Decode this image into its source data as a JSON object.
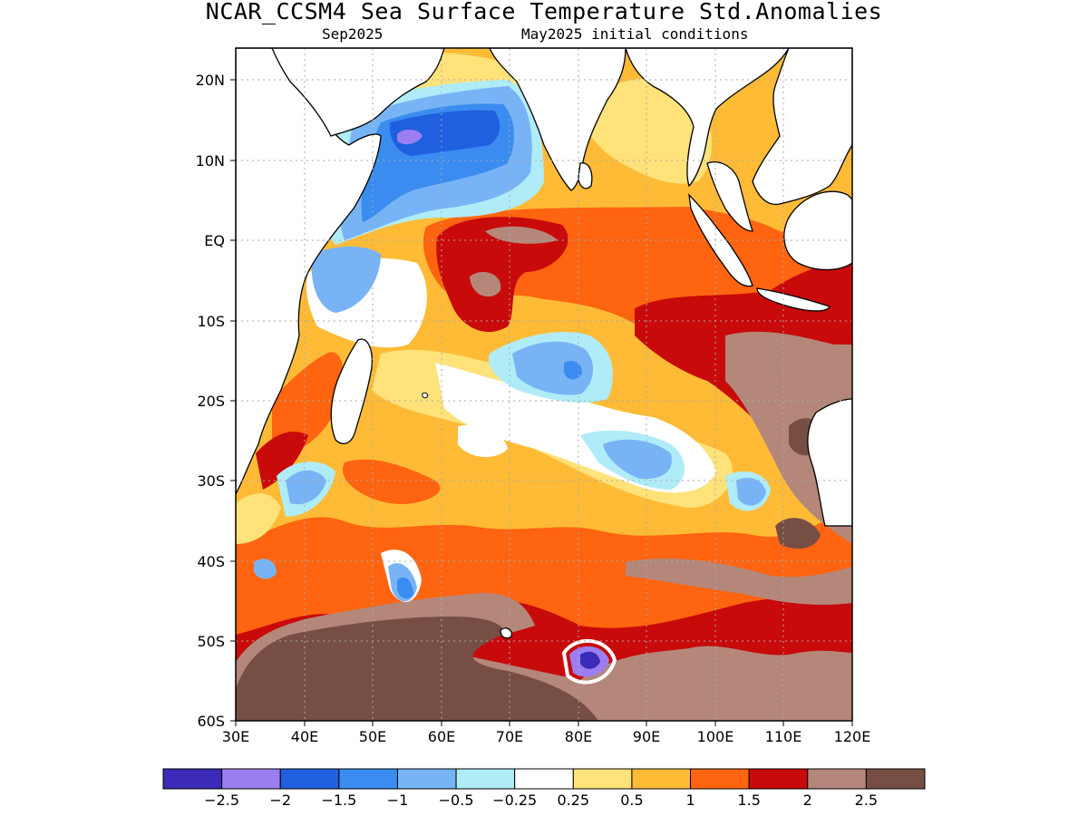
{
  "title": "NCAR_CCSM4 Sea Surface Temperature Std.Anomalies",
  "subtitle_left": "Sep2025",
  "subtitle_right": "May2025 initial conditions",
  "lat_labels": [
    "20N",
    "10N",
    "EQ",
    "10S",
    "20S",
    "30S",
    "40S",
    "50S",
    "60S"
  ],
  "lon_labels": [
    "30E",
    "40E",
    "50E",
    "60E",
    "70E",
    "80E",
    "90E",
    "100E",
    "110E",
    "120E"
  ],
  "colorbar": {
    "colors": [
      "#3b2bb8",
      "#9b7ff0",
      "#1f5fe0",
      "#3a8cf0",
      "#78b4f5",
      "#b0ecf8",
      "#ffffff",
      "#ffe27a",
      "#ffbb36",
      "#ff6410",
      "#c80a0a",
      "#b4877a",
      "#764e44"
    ],
    "labels": [
      "−2.5",
      "−2",
      "−1.5",
      "−1",
      "−0.5",
      "−0.25",
      "0.25",
      "0.5",
      "1",
      "1.5",
      "2",
      "2.5"
    ]
  }
}
